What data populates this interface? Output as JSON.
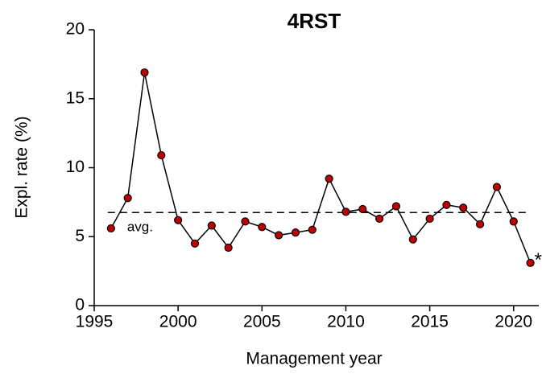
{
  "chart_data": {
    "type": "line",
    "title": "4RST",
    "x_label": "Management year",
    "y_label": "Expl. rate (%)",
    "x": [
      1996,
      1997,
      1998,
      1999,
      2000,
      2001,
      2002,
      2003,
      2004,
      2005,
      2006,
      2007,
      2008,
      2009,
      2010,
      2011,
      2012,
      2013,
      2014,
      2015,
      2016,
      2017,
      2018,
      2019,
      2020,
      2021
    ],
    "series": [
      {
        "name": "Expl. rate",
        "color": "#c00000",
        "values": [
          5.6,
          7.8,
          16.9,
          10.9,
          6.2,
          4.5,
          5.8,
          4.2,
          6.1,
          5.7,
          5.1,
          5.3,
          5.5,
          9.2,
          6.8,
          7.0,
          6.3,
          7.2,
          4.8,
          6.3,
          7.3,
          7.1,
          5.9,
          8.6,
          6.1,
          3.1
        ]
      }
    ],
    "average": 6.75,
    "average_label": "avg.",
    "last_point_annotation": "*",
    "xlim": [
      1995,
      2021.5
    ],
    "xticks": [
      1995,
      2000,
      2005,
      2010,
      2015,
      2020
    ],
    "ylim": [
      0,
      20
    ],
    "yticks": [
      0,
      5,
      10,
      15,
      20
    ],
    "grid": false
  }
}
